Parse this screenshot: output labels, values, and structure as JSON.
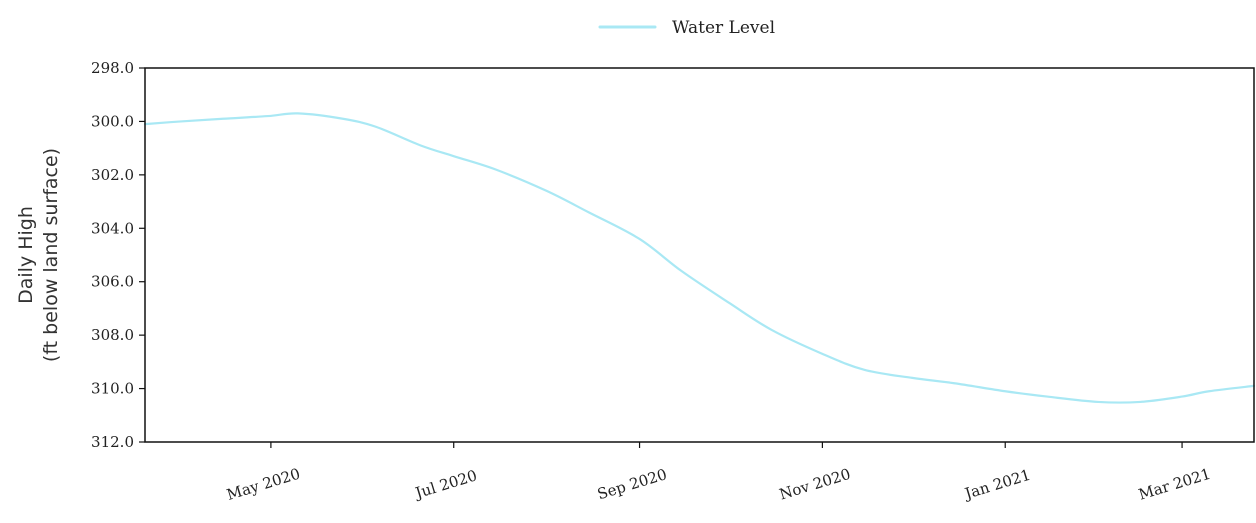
{
  "chart_data": {
    "type": "line",
    "title": "",
    "xlabel": "",
    "ylabel": "Daily High",
    "ylabel_sub": "(ft below land surface)",
    "y_inverted": true,
    "ylim": [
      298.0,
      312.0
    ],
    "y_ticks": [
      298.0,
      300.0,
      302.0,
      304.0,
      306.0,
      308.0,
      310.0,
      312.0
    ],
    "y_tick_labels": [
      "298.0",
      "300.0",
      "302.0",
      "304.0",
      "306.0",
      "308.0",
      "310.0",
      "312.0"
    ],
    "xlim": [
      "2020-03-20",
      "2021-03-25"
    ],
    "x_ticks": [
      "2020-05-01",
      "2020-07-01",
      "2020-09-01",
      "2020-11-01",
      "2021-01-01",
      "2021-03-01"
    ],
    "x_tick_labels": [
      "May 2020",
      "Jul 2020",
      "Sep 2020",
      "Nov 2020",
      "Jan 2021",
      "Mar 2021"
    ],
    "legend": {
      "position": "top-center",
      "entries": [
        "Water Level"
      ]
    },
    "grid": false,
    "colors": {
      "series": "#a9e8f4",
      "axis": "#111111"
    },
    "series": [
      {
        "name": "Water Level",
        "x": [
          "2020-03-20",
          "2020-04-01",
          "2020-04-15",
          "2020-04-30",
          "2020-05-10",
          "2020-05-25",
          "2020-06-05",
          "2020-06-20",
          "2020-07-01",
          "2020-07-15",
          "2020-08-01",
          "2020-08-15",
          "2020-09-01",
          "2020-09-15",
          "2020-10-01",
          "2020-10-15",
          "2020-11-01",
          "2020-11-15",
          "2020-12-01",
          "2020-12-15",
          "2021-01-01",
          "2021-01-15",
          "2021-02-01",
          "2021-02-15",
          "2021-03-01",
          "2021-03-10",
          "2021-03-25"
        ],
        "values": [
          300.1,
          300.0,
          299.9,
          299.8,
          299.7,
          299.9,
          300.2,
          300.9,
          301.3,
          301.8,
          302.6,
          303.4,
          304.4,
          305.6,
          306.8,
          307.8,
          308.7,
          309.3,
          309.6,
          309.8,
          310.1,
          310.3,
          310.5,
          310.5,
          310.3,
          310.1,
          309.9
        ]
      }
    ]
  }
}
